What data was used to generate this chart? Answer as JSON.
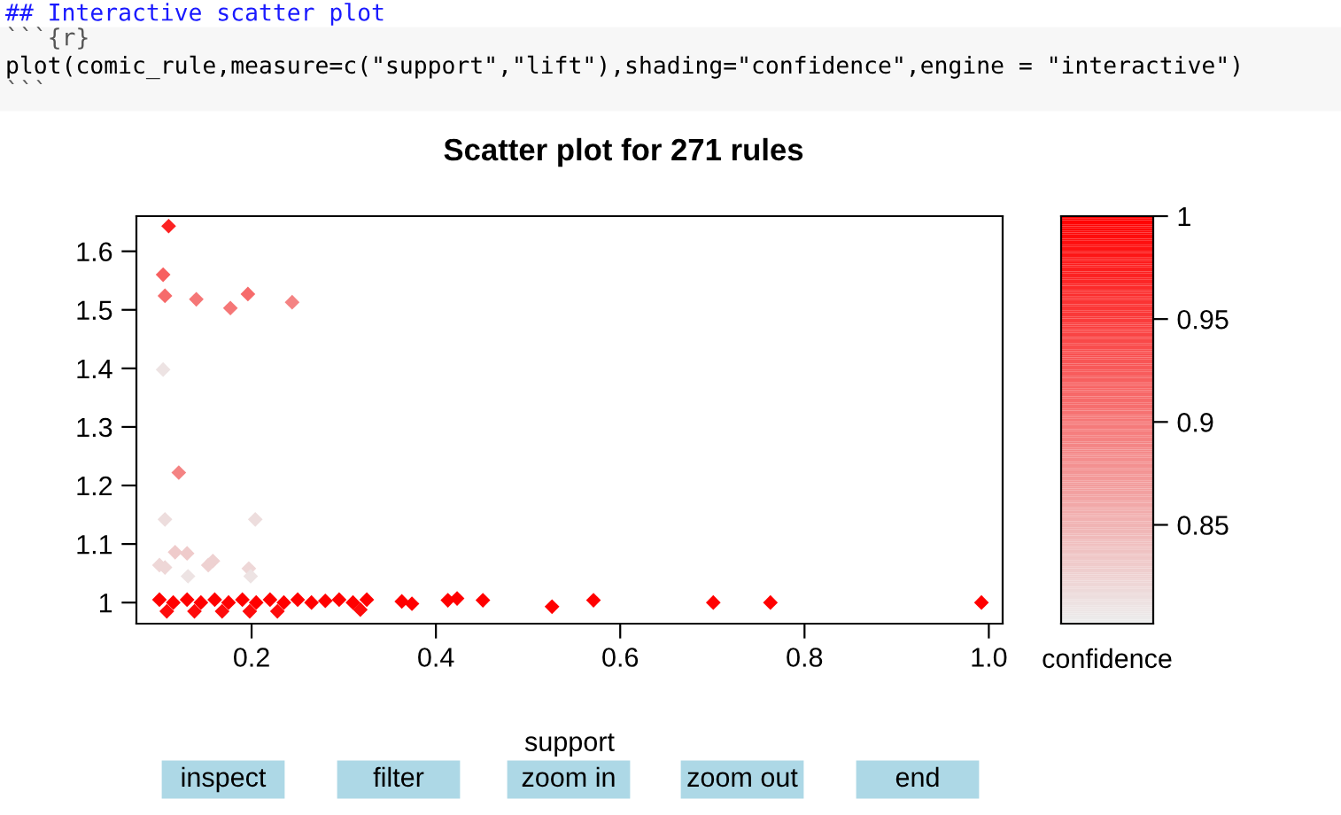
{
  "chart_data": {
    "type": "scatter",
    "title": "Scatter plot for 271 rules",
    "xlabel": "support",
    "clabel": "confidence",
    "annotations": [
      "## Interactive scatter plot",
      "```{r}",
      "plot(comic_rule,measure=c(\"support\",\"lift\"),shading=\"confidence\",engine = \"interactive\")",
      "```",
      "inspect",
      "filter",
      "zoom in",
      "zoom out",
      "end"
    ],
    "x": [
      0.11,
      0.104,
      0.106,
      0.14,
      0.177,
      0.196,
      0.244,
      0.104,
      0.121,
      0.106,
      0.204,
      0.117,
      0.13,
      0.1,
      0.106,
      0.131,
      0.158,
      0.153,
      0.197,
      0.199,
      0.1,
      0.115,
      0.13,
      0.145,
      0.16,
      0.175,
      0.19,
      0.205,
      0.22,
      0.235,
      0.25,
      0.265,
      0.28,
      0.295,
      0.31,
      0.325,
      0.108,
      0.138,
      0.168,
      0.198,
      0.228,
      0.318,
      0.363,
      0.374,
      0.413,
      0.423,
      0.451,
      0.526,
      0.571,
      0.701,
      0.763,
      0.992
    ],
    "values": [
      1.643,
      1.56,
      1.524,
      1.518,
      1.503,
      1.527,
      1.513,
      1.398,
      1.222,
      1.142,
      1.142,
      1.086,
      1.084,
      1.064,
      1.06,
      1.045,
      1.071,
      1.064,
      1.058,
      1.045,
      1.005,
      1.0,
      1.005,
      1.0,
      1.005,
      1.0,
      1.005,
      1.0,
      1.005,
      1.0,
      1.005,
      1.0,
      1.003,
      1.005,
      1.0,
      1.005,
      0.985,
      0.985,
      0.985,
      0.985,
      0.985,
      0.988,
      1.002,
      0.998,
      1.004,
      1.007,
      1.004,
      0.993,
      1.004,
      1.0,
      1.0,
      1.0
    ],
    "cvalues": [
      0.97,
      0.92,
      0.91,
      0.9,
      0.9,
      0.91,
      0.89,
      0.81,
      0.89,
      0.815,
      0.815,
      0.83,
      0.83,
      0.82,
      0.82,
      0.81,
      0.825,
      0.825,
      0.82,
      0.81,
      1,
      1,
      1,
      1,
      1,
      1,
      1,
      1,
      1,
      1,
      1,
      1,
      1,
      1,
      1,
      1,
      0.99,
      0.99,
      0.99,
      0.99,
      0.99,
      0.99,
      1,
      1,
      1,
      1,
      1,
      1,
      1,
      1,
      1,
      1
    ],
    "xlim": [
      0.075,
      1.015
    ],
    "ylim": [
      0.964,
      1.66
    ],
    "xticks": [
      0.2,
      0.4,
      0.6,
      0.8,
      {
        "value": 1.0,
        "label": "1.0"
      }
    ],
    "yticks": [
      1,
      1.1,
      1.2,
      1.3,
      1.4,
      1.5,
      1.6
    ],
    "clim": [
      0.802,
      1
    ],
    "cticks": [
      0.85,
      0.9,
      0.95,
      1
    ],
    "marker": "diamond",
    "grid": false
  }
}
